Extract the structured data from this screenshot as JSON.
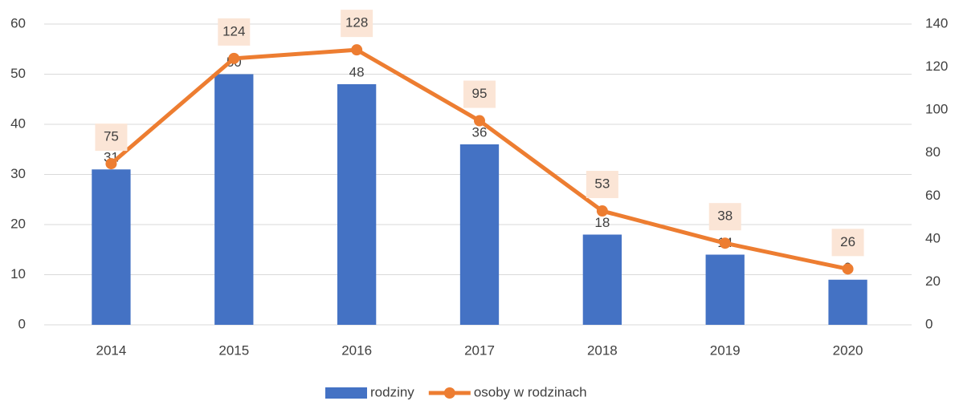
{
  "chart_data": {
    "type": "bar",
    "categories": [
      "2014",
      "2015",
      "2016",
      "2017",
      "2018",
      "2019",
      "2020"
    ],
    "series": [
      {
        "name": "rodziny",
        "type": "bar",
        "color": "#4472c4",
        "values": [
          31,
          50,
          48,
          36,
          18,
          14,
          9
        ]
      },
      {
        "name": "osoby w rodzinach",
        "type": "line",
        "axis": "y2",
        "color": "#ed7d31",
        "values": [
          75,
          124,
          128,
          95,
          53,
          38,
          26
        ]
      }
    ],
    "ylim": [
      0,
      60
    ],
    "yticks": [
      0,
      10,
      20,
      30,
      40,
      50,
      60
    ],
    "y2lim": [
      0,
      140
    ],
    "y2ticks": [
      0,
      20,
      40,
      60,
      80,
      100,
      120,
      140
    ],
    "grid": true,
    "legend": "bottom"
  }
}
